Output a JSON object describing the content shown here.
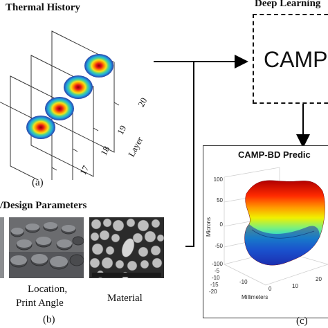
{
  "panel_a": {
    "title": "Thermal History",
    "caption": "(a)",
    "axis_label": "Layer",
    "layer_numbers": [
      "17",
      "18",
      "19",
      "20"
    ]
  },
  "deep_learning": {
    "title": "Deep Learning",
    "model_label": "CAMP-"
  },
  "panel_b": {
    "title": "/Design Parameters",
    "caption": "(b)",
    "photo_labels": {
      "location_line1": "Location,",
      "location_line2": "Print Angle",
      "material": "Material"
    }
  },
  "panel_c": {
    "title": "CAMP-BD Predic",
    "caption": "(c)",
    "zlabel": "Microns",
    "xlabel": "Millimeters",
    "z_ticks": [
      "100",
      "50",
      "0",
      "-50",
      "-100"
    ],
    "y_ticks": [
      "-5",
      "-10",
      "-15",
      "-20"
    ],
    "x_ticks": [
      "-10",
      "0",
      "10",
      "20"
    ]
  },
  "colors": {
    "arrow": "#000000",
    "box_border": "#000000",
    "hot": "#d7191c",
    "cold": "#2b3ea8"
  }
}
